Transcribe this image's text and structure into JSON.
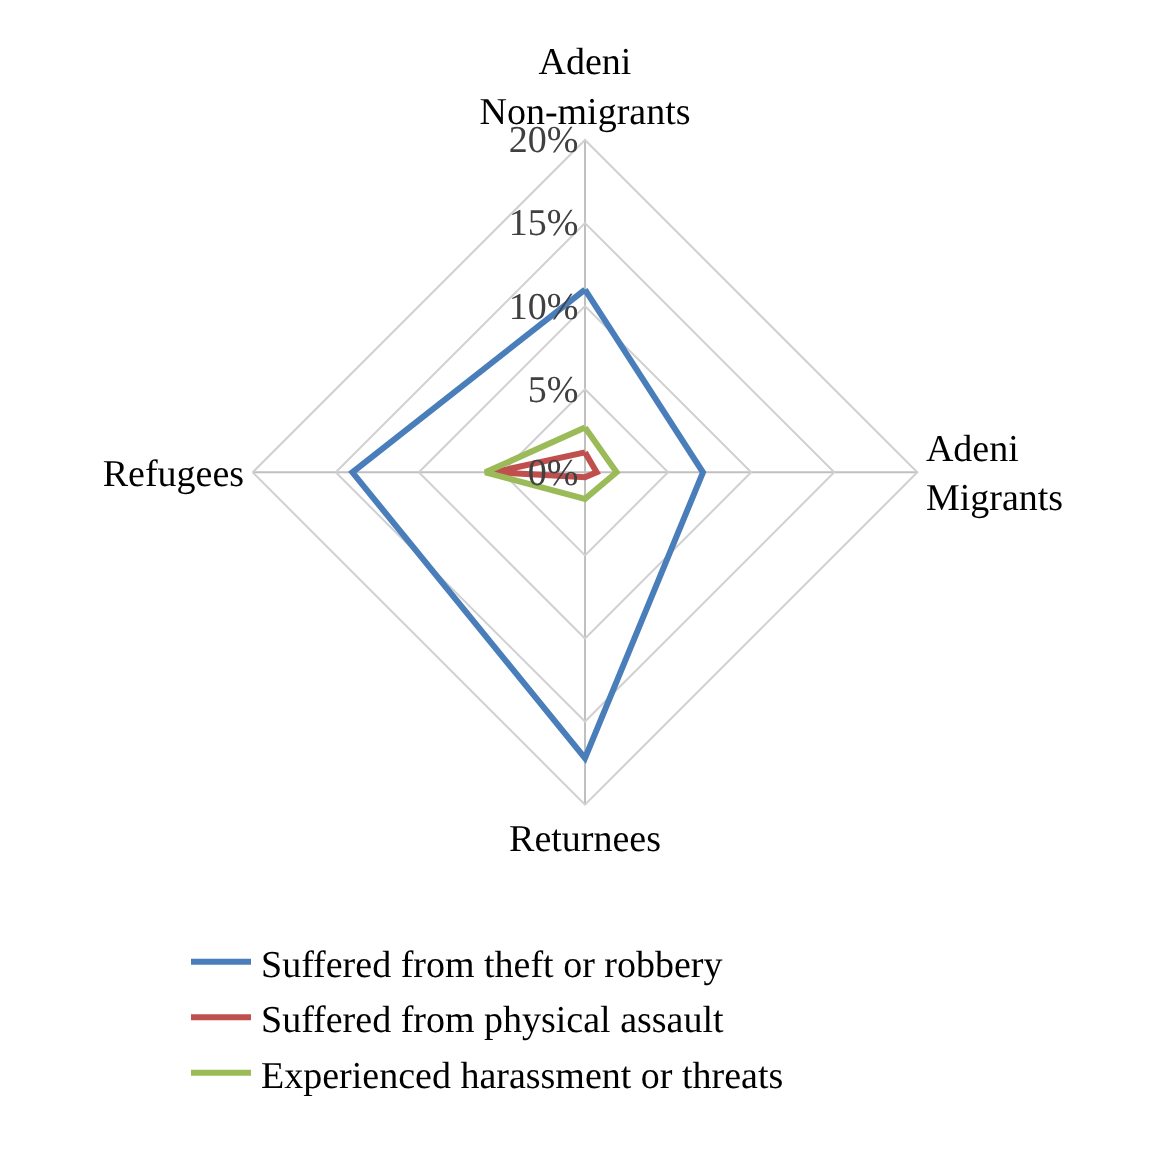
{
  "chart_data": {
    "type": "radar",
    "categories": [
      "Adeni Non-migrants",
      "Adeni Migrants",
      "Returnees",
      "Refugees"
    ],
    "ylim": [
      0,
      20
    ],
    "yticks": [
      {
        "value": 0,
        "label": "0%"
      },
      {
        "value": 5,
        "label": "5%"
      },
      {
        "value": 10,
        "label": "10%"
      },
      {
        "value": 15,
        "label": "15%"
      },
      {
        "value": 20,
        "label": "20%"
      }
    ],
    "series": [
      {
        "name": "Suffered from theft or robbery",
        "color": "#4a7ebb",
        "values": [
          11,
          7.1,
          17.2,
          14
        ]
      },
      {
        "name": "Suffered from physical assault",
        "color": "#c0504d",
        "values": [
          1.2,
          0.7,
          0.3,
          5.5
        ]
      },
      {
        "name": "Experienced harassment or threats",
        "color": "#9bbb59",
        "values": [
          2.7,
          1.9,
          1.6,
          6
        ]
      }
    ],
    "grid": true,
    "legend": "bottom",
    "marker": "none"
  }
}
